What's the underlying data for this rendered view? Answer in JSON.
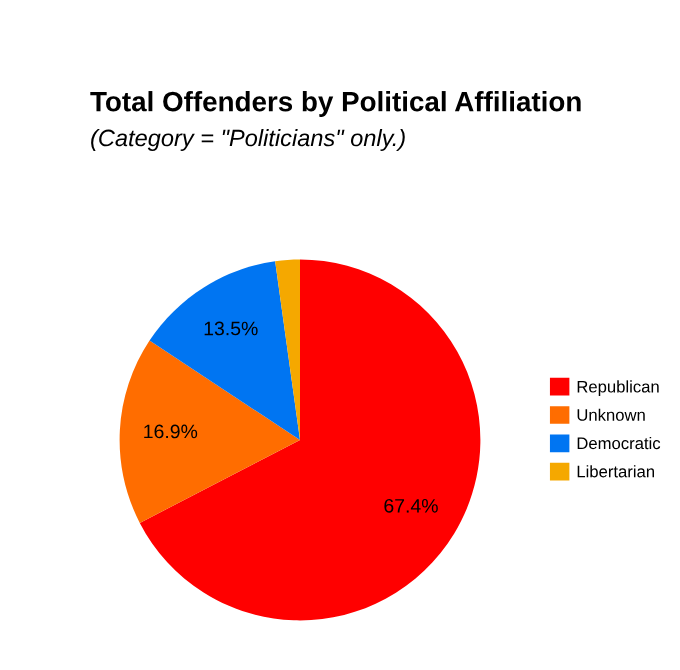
{
  "chart_data": {
    "type": "pie",
    "title": "Total Offenders by Political Affiliation",
    "subtitle": "(Category = \"Politicians\" only.)",
    "categories": [
      "Republican",
      "Unknown",
      "Democratic",
      "Libertarian"
    ],
    "values": [
      67.4,
      16.9,
      13.5,
      2.2
    ],
    "value_labels": [
      "67.4%",
      "16.9%",
      "13.5%",
      null
    ],
    "colors": [
      "#ff0000",
      "#ff6d00",
      "#0075f2",
      "#f5a800"
    ],
    "legend": "right"
  }
}
